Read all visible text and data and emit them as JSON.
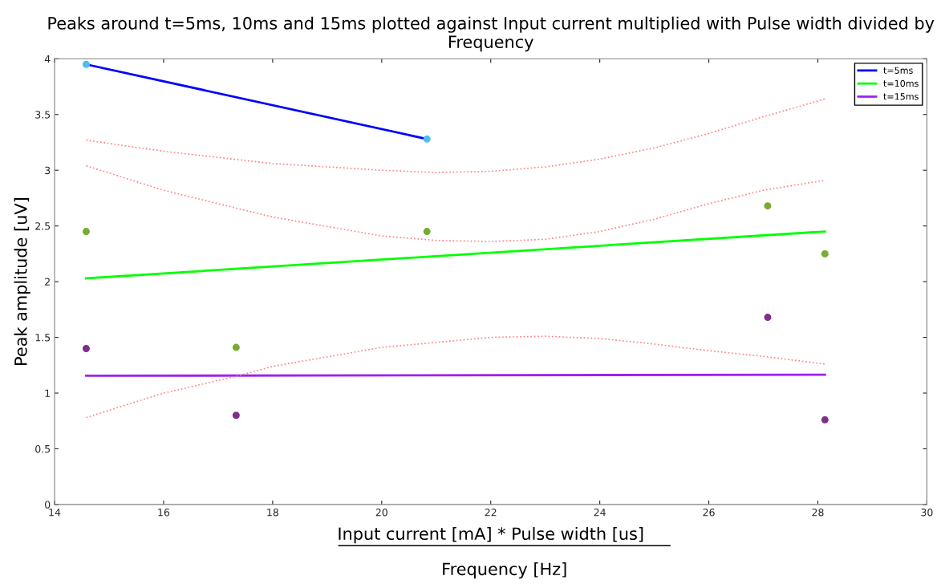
{
  "chart_data": {
    "type": "line",
    "title": "Peaks around t=5ms, 10ms and 15ms plotted against Input current multiplied with Pulse width divided by Frequency",
    "xlabel": "Input current [mA] * Pulse width [us]",
    "ylabel": "Peak amplitude [uV]",
    "annotations": [
      "Frequency [Hz]"
    ],
    "xlim": [
      14,
      30
    ],
    "xticks": [
      14,
      16,
      18,
      20,
      22,
      24,
      26,
      28,
      30
    ],
    "ylim": [
      0,
      4
    ],
    "yticks": [
      0,
      0.5,
      1,
      1.5,
      2,
      2.5,
      3,
      3.5,
      4
    ],
    "grid": false,
    "legend": "top right",
    "series": [
      {
        "name": "t=5ms",
        "color": "#0000ff",
        "line_style": "solid",
        "x": [
          14.58,
          20.83
        ],
        "values": [
          3.95,
          3.28
        ]
      },
      {
        "name": "t=10ms",
        "color": "#00ff00",
        "line_style": "solid",
        "x": [
          14.58,
          28.13
        ],
        "values": [
          2.03,
          2.45
        ]
      },
      {
        "name": "t=15ms",
        "color": "#a020f0",
        "line_style": "solid",
        "x": [
          14.58,
          28.13
        ],
        "values": [
          1.155,
          1.165
        ]
      },
      {
        "type": "scatter",
        "color": "#4dbeee",
        "marker": "circle",
        "x": [
          14.58,
          20.83
        ],
        "values": [
          3.95,
          3.28
        ]
      },
      {
        "type": "scatter",
        "color": "#77ac30",
        "marker": "circle",
        "x": [
          14.58,
          17.33,
          20.83,
          27.08,
          28.13
        ],
        "values": [
          2.45,
          1.41,
          2.45,
          2.68,
          2.25
        ]
      },
      {
        "type": "scatter",
        "color": "#7e2f8e",
        "marker": "circle",
        "x": [
          14.58,
          17.33,
          27.08,
          28.13
        ],
        "values": [
          1.4,
          0.8,
          1.68,
          0.76
        ]
      },
      {
        "type": "line",
        "color": "#ff8080",
        "line_style": "dotted",
        "x": [
          14.58,
          16,
          18,
          20,
          21,
          22,
          23,
          24,
          25,
          26,
          27,
          28.13
        ],
        "values": [
          3.27,
          3.17,
          3.06,
          3.0,
          2.98,
          2.99,
          3.03,
          3.1,
          3.2,
          3.33,
          3.48,
          3.64
        ]
      },
      {
        "type": "line",
        "color": "#ff8080",
        "line_style": "dotted",
        "x": [
          14.58,
          16,
          18,
          20,
          21,
          22,
          23,
          24,
          25,
          26,
          27,
          28.13
        ],
        "values": [
          3.04,
          2.82,
          2.58,
          2.41,
          2.37,
          2.36,
          2.38,
          2.45,
          2.56,
          2.7,
          2.82,
          2.91
        ]
      },
      {
        "type": "line",
        "color": "#ff8080",
        "line_style": "dotted",
        "x": [
          14.58,
          16,
          17.33,
          18,
          20,
          22,
          23,
          24,
          25,
          26,
          27,
          28.13
        ],
        "values": [
          0.78,
          1.0,
          1.15,
          1.24,
          1.41,
          1.5,
          1.51,
          1.49,
          1.44,
          1.38,
          1.33,
          1.26
        ]
      }
    ]
  }
}
